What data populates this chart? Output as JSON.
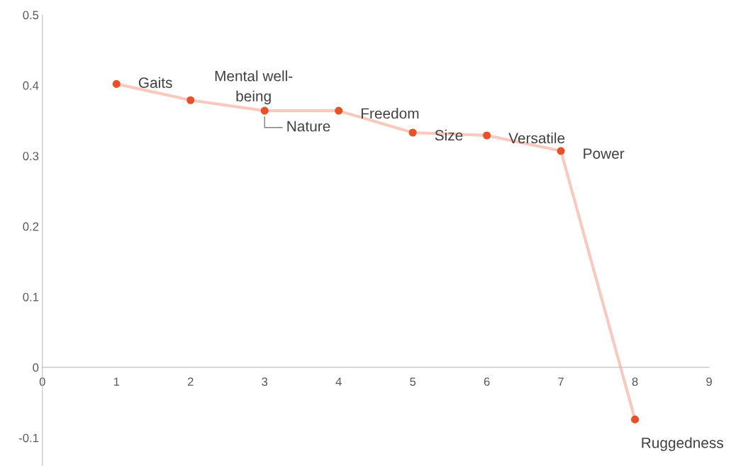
{
  "chart_data": {
    "type": "line",
    "x": [
      1,
      2,
      3,
      4,
      5,
      6,
      7,
      8
    ],
    "series": [
      {
        "color": "#e8502a",
        "values": [
          0.402,
          0.379,
          0.364,
          0.364,
          0.333,
          0.329,
          0.307,
          -0.074
        ]
      }
    ],
    "marker": "circle",
    "grid": false,
    "legend": false,
    "xlim": [
      0,
      9
    ],
    "xticks": [
      0,
      1,
      2,
      3,
      4,
      5,
      6,
      7,
      8,
      9
    ],
    "ylim": [
      -0.14,
      0.5
    ],
    "yticks": [
      -0.1,
      0,
      0.1,
      0.2,
      0.3,
      0.4,
      0.5
    ],
    "annotations": [
      {
        "text": "Gaits",
        "x": 1,
        "y": 0.402
      },
      {
        "text": "Mental well-\nbeing",
        "x": 2,
        "y": 0.379
      },
      {
        "text": "Nature",
        "x": 3,
        "y": 0.364
      },
      {
        "text": "Freedom",
        "x": 4,
        "y": 0.364
      },
      {
        "text": "Size",
        "x": 5,
        "y": 0.333
      },
      {
        "text": "Versatile",
        "x": 6,
        "y": 0.329
      },
      {
        "text": "Power",
        "x": 7,
        "y": 0.307
      },
      {
        "text": "Ruggedness",
        "x": 8,
        "y": -0.074
      }
    ]
  }
}
